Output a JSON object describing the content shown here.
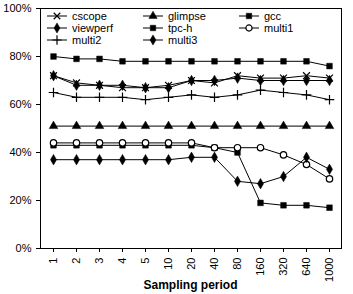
{
  "chart_data": {
    "type": "line",
    "x_label": "Sampling period",
    "categories": [
      "1",
      "2",
      "3",
      "4",
      "5",
      "10",
      "20",
      "40",
      "80",
      "160",
      "320",
      "640",
      "1000"
    ],
    "series": [
      {
        "name": "cscope",
        "color": "#000000",
        "marker": "x",
        "values": [
          72,
          69,
          68,
          67,
          67,
          68,
          70,
          69,
          72,
          71,
          71,
          72,
          71
        ]
      },
      {
        "name": "glimpse",
        "color": "#000000",
        "marker": "triangle",
        "values": [
          51,
          51,
          51,
          51,
          51,
          51,
          51,
          51,
          51,
          51,
          51,
          51,
          51
        ]
      },
      {
        "name": "gcc",
        "color": "#000000",
        "marker": "square",
        "values": [
          80,
          79,
          79,
          78,
          78,
          78,
          78,
          78,
          78,
          78,
          78,
          78,
          76
        ]
      },
      {
        "name": "viewperf",
        "color": "#000000",
        "marker": "diamond",
        "values": [
          72,
          68,
          68,
          68,
          67,
          67,
          70,
          70,
          71,
          70,
          70,
          70,
          70
        ]
      },
      {
        "name": "tpc-h",
        "color": "#000000",
        "marker": "square",
        "values": [
          43,
          43,
          43,
          43,
          43,
          43,
          43,
          42,
          40,
          19,
          18,
          18,
          17
        ]
      },
      {
        "name": "multi1",
        "color": "#000000",
        "marker": "circle",
        "values": [
          44,
          44,
          44,
          44,
          44,
          44,
          44,
          42,
          42,
          42,
          39,
          35,
          29
        ]
      },
      {
        "name": "multi2",
        "color": "#000000",
        "marker": "plus",
        "values": [
          65,
          63,
          63,
          63,
          62,
          63,
          64,
          63,
          64,
          66,
          65,
          64,
          62
        ]
      },
      {
        "name": "multi3",
        "color": "#000000",
        "marker": "diamond",
        "values": [
          37,
          37,
          37,
          37,
          37,
          37,
          38,
          38,
          28,
          27,
          30,
          38,
          33
        ]
      }
    ],
    "ylim": [
      0,
      100
    ],
    "yticks": [
      {
        "value": 0,
        "label": "0%"
      },
      {
        "value": 20,
        "label": "20%"
      },
      {
        "value": 40,
        "label": "40%"
      },
      {
        "value": 60,
        "label": "60%"
      },
      {
        "value": 80,
        "label": "80%"
      },
      {
        "value": 100,
        "label": "100%"
      }
    ],
    "grid": false,
    "legend": "top"
  }
}
